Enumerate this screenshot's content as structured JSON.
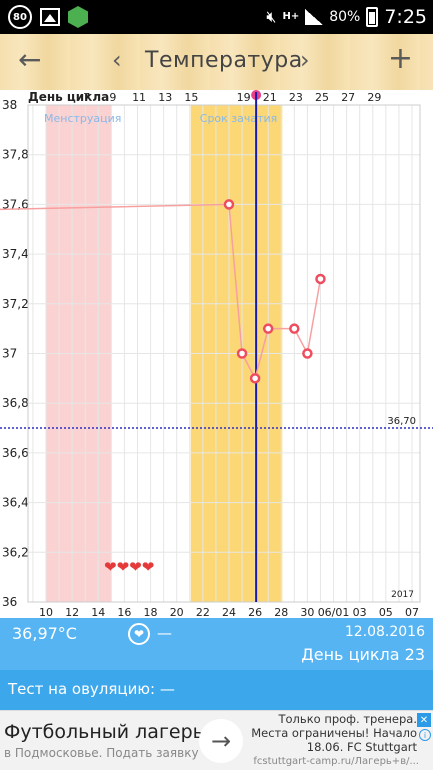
{
  "status_bar": {
    "notification_count": "80",
    "network_type": "H+",
    "battery": "80%",
    "time": "7:25"
  },
  "app_bar": {
    "title": "Температура",
    "back_icon": "arrow-left",
    "prev_icon": "chevron-left",
    "next_icon": "chevron-right",
    "add_icon": "plus"
  },
  "chart_data": {
    "type": "line",
    "top_axis_title": "День цикла",
    "top_ticks": [
      "7",
      "9",
      "11",
      "13",
      "15",
      "19",
      "21",
      "23",
      "25",
      "27",
      "29"
    ],
    "bottom_ticks": [
      "10",
      "12",
      "14",
      "16",
      "18",
      "20",
      "22",
      "24",
      "26",
      "28",
      "30",
      "06/01",
      "03",
      "05",
      "07"
    ],
    "y_ticks": [
      "38",
      "37,8",
      "37,6",
      "37,4",
      "37,2",
      "37",
      "36,8",
      "36,6",
      "36,4",
      "36,2",
      "36"
    ],
    "ylim": [
      36,
      38
    ],
    "bands": [
      {
        "label": "Менструация",
        "color": "#fad2d2"
      },
      {
        "label": "Срок зачатия",
        "color": "#fbd875"
      }
    ],
    "reference_line": {
      "label": "36,70",
      "value": 36.7,
      "color": "#2d2dc8"
    },
    "current_day": "26",
    "year_label": "2017",
    "hearts": "❤❤❤❤",
    "series": [
      {
        "x": [
          "05/17",
          "05/24",
          "05/25",
          "05/26",
          "05/27",
          "05/29",
          "05/30",
          "05/31"
        ],
        "values": [
          37.58,
          37.6,
          37.0,
          36.9,
          37.1,
          37.1,
          37.0,
          37.3
        ],
        "color": "#f7a0a0"
      }
    ],
    "grid": true
  },
  "info": {
    "temperature": "36,97°C",
    "heart_value": "—",
    "date": "12.08.2016",
    "cycle_day": "День цикла 23"
  },
  "ovulation": {
    "text": "Тест на овуляцию: —"
  },
  "ad": {
    "title": "Футбольный лагерь",
    "subtitle": "в Подмосковье. Подать заявку",
    "right_line1": "Только проф. тренера.",
    "right_line2": "Места ограничены! Начало",
    "right_line3": "18.06. FC Stuttgart",
    "url": "fcstuttgart-camp.ru/Лагерь+в/..."
  }
}
